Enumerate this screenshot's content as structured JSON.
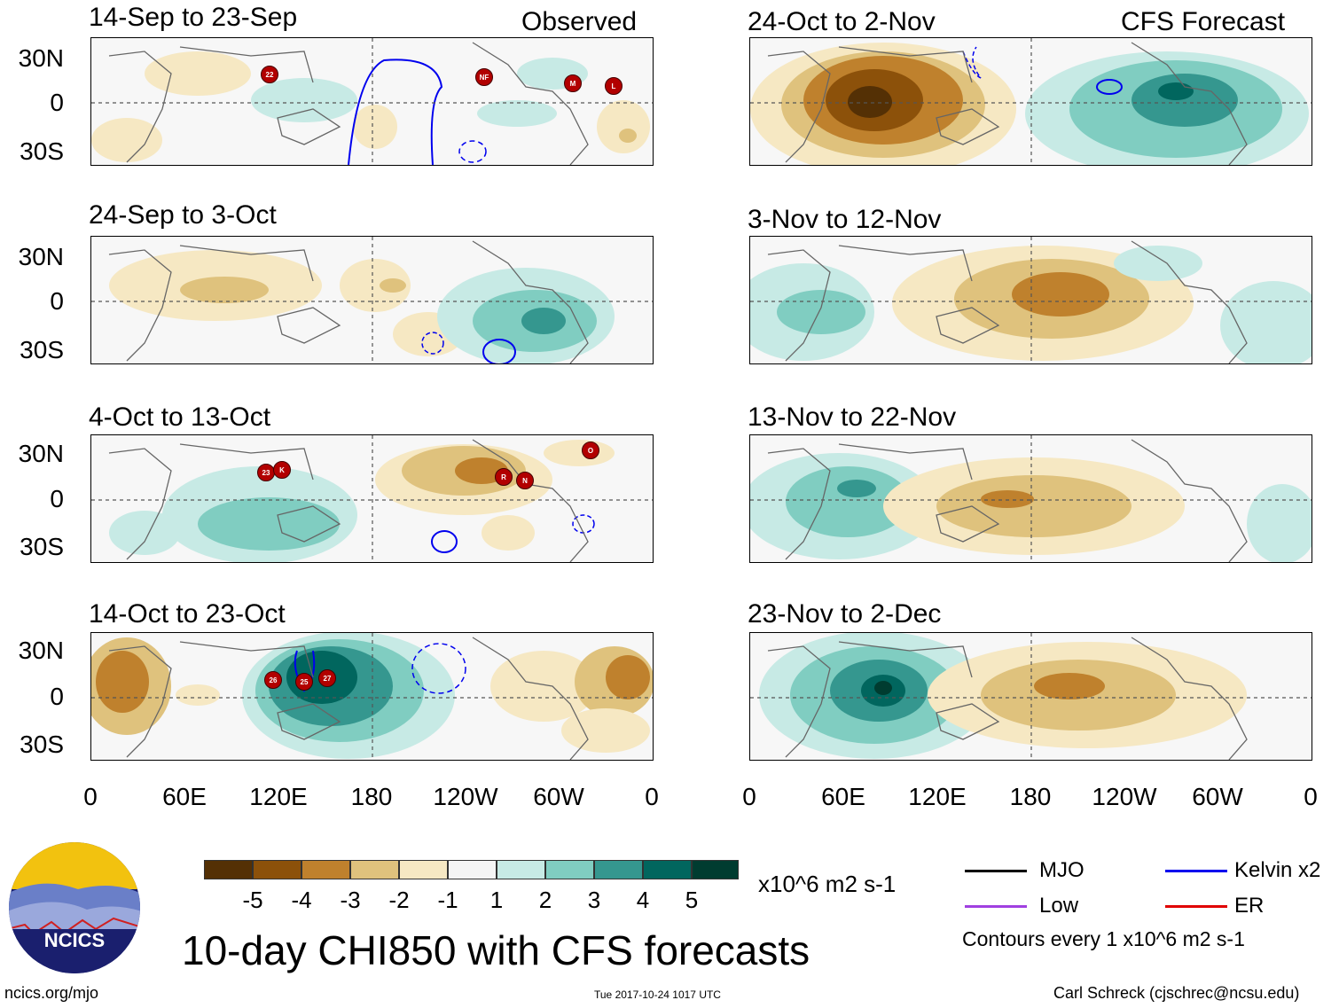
{
  "figure": {
    "title": "10-day CHI850 with CFS forecasts",
    "website": "ncics.org/mjo",
    "timestamp": "Tue 2017-10-24 1017 UTC",
    "author": "Carl Schreck (cjschrec@ncsu.edu)",
    "logo_text": "NCICS"
  },
  "columns": {
    "left_header": "Observed",
    "right_header": "CFS Forecast"
  },
  "panels_left": [
    {
      "period": "14-Sep to 23-Sep"
    },
    {
      "period": "24-Sep to 3-Oct"
    },
    {
      "period": "4-Oct to 13-Oct"
    },
    {
      "period": "14-Oct to 23-Oct"
    }
  ],
  "panels_right": [
    {
      "period": "24-Oct to 2-Nov"
    },
    {
      "period": "3-Nov to 12-Nov"
    },
    {
      "period": "13-Nov to 22-Nov"
    },
    {
      "period": "23-Nov to 2-Dec"
    }
  ],
  "axes": {
    "lat_labels": [
      "30N",
      "0",
      "30S"
    ],
    "lon_labels": [
      "0",
      "60E",
      "120E",
      "180",
      "120W",
      "60W",
      "0"
    ]
  },
  "storms": [
    {
      "panel": 0,
      "label": "22"
    },
    {
      "panel": 0,
      "label": "NF"
    },
    {
      "panel": 0,
      "label": "M"
    },
    {
      "panel": 0,
      "label": "L"
    },
    {
      "panel": 2,
      "label": "23"
    },
    {
      "panel": 2,
      "label": "K"
    },
    {
      "panel": 2,
      "label": "R"
    },
    {
      "panel": 2,
      "label": "N"
    },
    {
      "panel": 2,
      "label": "O"
    },
    {
      "panel": 3,
      "label": "26"
    },
    {
      "panel": 3,
      "label": "25"
    },
    {
      "panel": 3,
      "label": "27"
    }
  ],
  "colorbar": {
    "unit": "x10^6 m2 s-1",
    "labels": [
      "-5",
      "-4",
      "-3",
      "-2",
      "-1",
      "1",
      "2",
      "3",
      "4",
      "5"
    ],
    "colors": [
      "#543005",
      "#8c510a",
      "#bf812d",
      "#dfc27d",
      "#f6e8c3",
      "#f5f5f5",
      "#c7eae5",
      "#80cdc1",
      "#35978f",
      "#01665e",
      "#003c30"
    ]
  },
  "legend": {
    "items": [
      {
        "label": "MJO",
        "color": "#000000"
      },
      {
        "label": "Kelvin x2",
        "color": "#0000ee"
      },
      {
        "label": "Low",
        "color": "#a040e0"
      },
      {
        "label": "ER",
        "color": "#e00000"
      }
    ],
    "note": "Contours every 1 x10^6 m2 s-1"
  }
}
